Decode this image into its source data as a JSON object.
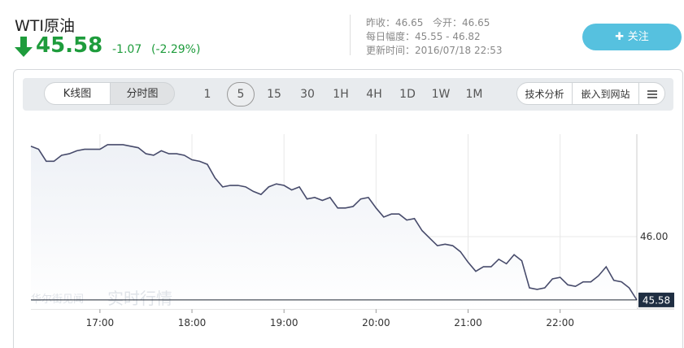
{
  "header": {
    "title": "WTI原油",
    "price": "45.58",
    "change": "-1.07",
    "change_pct": "(-2.29%)",
    "prev_close": "昨收：46.65",
    "open": "今开：46.65",
    "range": "每日幅度：45.55 - 46.82",
    "updated": "更新时间：2016/07/18 22:53",
    "follow_button": "关注"
  },
  "toolbar": {
    "tabs": [
      "K线图",
      "分时图"
    ],
    "periods": [
      "1",
      "5",
      "15",
      "30",
      "1H",
      "4H",
      "1D",
      "1W",
      "1M"
    ],
    "tools": [
      "技术分析",
      "嵌入到网站"
    ]
  },
  "watermark": [
    "华尔街见闻",
    "实时行情"
  ],
  "chart_data": {
    "type": "line",
    "color": "#474b6b",
    "x": [
      975,
      980,
      985,
      990,
      995,
      1000,
      1005,
      1010,
      1015,
      1020,
      1025,
      1030,
      1035,
      1040,
      1045,
      1050,
      1055,
      1060,
      1065,
      1070,
      1075,
      1080,
      1085,
      1090,
      1095,
      1100,
      1105,
      1110,
      1115,
      1120,
      1125,
      1130,
      1135,
      1140,
      1145,
      1150,
      1155,
      1160,
      1165,
      1170,
      1175,
      1180,
      1185,
      1190,
      1195,
      1200,
      1205,
      1210,
      1215,
      1220,
      1225,
      1230,
      1235,
      1240,
      1245,
      1250,
      1255,
      1260,
      1265,
      1270,
      1275,
      1280,
      1285,
      1290,
      1295,
      1300,
      1305,
      1310,
      1315,
      1320,
      1325,
      1330,
      1335,
      1340,
      1345,
      1350,
      1355,
      1360,
      1365,
      1370
    ],
    "values": [
      46.6,
      46.58,
      46.5,
      46.5,
      46.54,
      46.55,
      46.57,
      46.58,
      46.58,
      46.58,
      46.61,
      46.61,
      46.61,
      46.6,
      46.59,
      46.55,
      46.54,
      46.57,
      46.55,
      46.55,
      46.54,
      46.51,
      46.5,
      46.48,
      46.39,
      46.33,
      46.34,
      46.34,
      46.33,
      46.3,
      46.28,
      46.33,
      46.35,
      46.34,
      46.31,
      46.33,
      46.25,
      46.26,
      46.24,
      46.26,
      46.19,
      46.19,
      46.2,
      46.25,
      46.26,
      46.19,
      46.13,
      46.15,
      46.15,
      46.11,
      46.12,
      46.04,
      45.99,
      45.94,
      45.95,
      45.94,
      45.9,
      45.83,
      45.77,
      45.8,
      45.8,
      45.85,
      45.82,
      45.88,
      45.84,
      45.66,
      45.65,
      45.66,
      45.72,
      45.73,
      45.68,
      45.67,
      45.7,
      45.7,
      45.74,
      45.8,
      45.71,
      45.7,
      45.66,
      45.58
    ],
    "xlim": [
      975,
      1370
    ],
    "xticks": [
      {
        "value": 1020,
        "label": "17:00"
      },
      {
        "value": 1080,
        "label": "18:00"
      },
      {
        "value": 1140,
        "label": "19:00"
      },
      {
        "value": 1200,
        "label": "20:00"
      },
      {
        "value": 1260,
        "label": "21:00"
      },
      {
        "value": 1320,
        "label": "22:00"
      }
    ],
    "ylim": [
      45.52,
      46.68
    ],
    "yticks": [
      {
        "value": 46,
        "label": "46.00"
      }
    ],
    "current_price": 45.58,
    "grid": true
  }
}
